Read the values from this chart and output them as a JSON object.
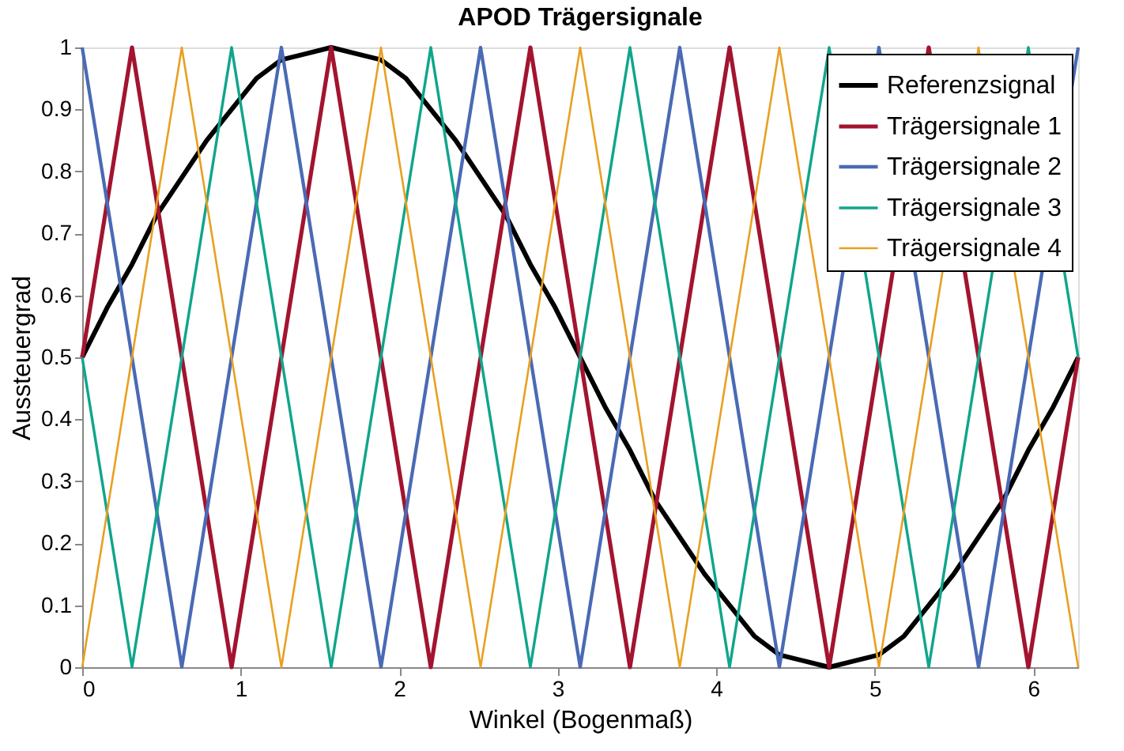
{
  "chart_data": {
    "type": "line",
    "title": "APOD Trägersignale",
    "xlabel": "Winkel (Bogenmaß)",
    "ylabel": "Aussteuergrad",
    "xlim": [
      0,
      6.2832
    ],
    "xticks": [
      0,
      1,
      2,
      3,
      4,
      5,
      6
    ],
    "ylim": [
      0,
      1
    ],
    "yticks": [
      0,
      0.1,
      0.2,
      0.3,
      0.4,
      0.5,
      0.6,
      0.7,
      0.8,
      0.9,
      1
    ],
    "grid": false,
    "legend": "top right",
    "marker": "none",
    "line_style": "solid",
    "series": [
      {
        "name": "Referenzsignal",
        "color": "#000000",
        "x": [
          0,
          0.1571,
          0.3142,
          0.4712,
          0.6283,
          0.7854,
          0.9425,
          1.0996,
          1.2566,
          1.4137,
          1.5708,
          1.7279,
          1.885,
          2.042,
          2.1991,
          2.3562,
          2.5133,
          2.6704,
          2.8274,
          2.9845,
          3.1416,
          3.2987,
          3.4558,
          3.6128,
          3.7699,
          3.927,
          4.0841,
          4.2412,
          4.3982,
          4.5553,
          4.7124,
          4.8695,
          5.0265,
          5.1836,
          5.3407,
          5.4978,
          5.6549,
          5.8119,
          5.969,
          6.1261,
          6.2832
        ],
        "values": [
          0.5,
          0.58,
          0.65,
          0.73,
          0.79,
          0.85,
          0.9,
          0.95,
          0.98,
          0.99,
          1,
          0.99,
          0.98,
          0.95,
          0.9,
          0.85,
          0.79,
          0.73,
          0.65,
          0.58,
          0.5,
          0.42,
          0.35,
          0.27,
          0.21,
          0.15,
          0.1,
          0.05,
          0.02,
          0.01,
          0,
          0.01,
          0.02,
          0.05,
          0.1,
          0.15,
          0.21,
          0.27,
          0.35,
          0.42,
          0.5
        ]
      },
      {
        "name": "Trägersignale 1",
        "color": "#a2142f",
        "x": [
          0,
          0.3142,
          0.9425,
          1.5708,
          2.1991,
          2.8274,
          3.4558,
          4.0841,
          4.7124,
          5.3407,
          5.969,
          6.2832
        ],
        "values": [
          0.5,
          1,
          0,
          1,
          0,
          1,
          0,
          1,
          0,
          1,
          0,
          0.5
        ]
      },
      {
        "name": "Trägersignale 2",
        "color": "#4a6ab5",
        "x": [
          0,
          0.6283,
          1.2566,
          1.885,
          2.5133,
          3.1416,
          3.7699,
          4.3982,
          5.0265,
          5.6549,
          6.2832
        ],
        "values": [
          1,
          0,
          1,
          0,
          1,
          0,
          1,
          0,
          1,
          0,
          1
        ]
      },
      {
        "name": "Trägersignale 3",
        "color": "#10a58c",
        "x": [
          0,
          0.3142,
          0.9425,
          1.5708,
          2.1991,
          2.8274,
          3.4558,
          4.0841,
          4.7124,
          5.3407,
          5.969,
          6.2832
        ],
        "values": [
          0.5,
          0,
          1,
          0,
          1,
          0,
          1,
          0,
          1,
          0,
          1,
          0.5
        ]
      },
      {
        "name": "Trägersignale 4",
        "color": "#e8a020",
        "x": [
          0,
          0.6283,
          1.2566,
          1.885,
          2.5133,
          3.1416,
          3.7699,
          4.3982,
          5.0265,
          5.6549,
          6.2832
        ],
        "values": [
          0,
          1,
          0,
          1,
          0,
          1,
          0,
          1,
          0,
          1,
          0
        ]
      }
    ]
  }
}
